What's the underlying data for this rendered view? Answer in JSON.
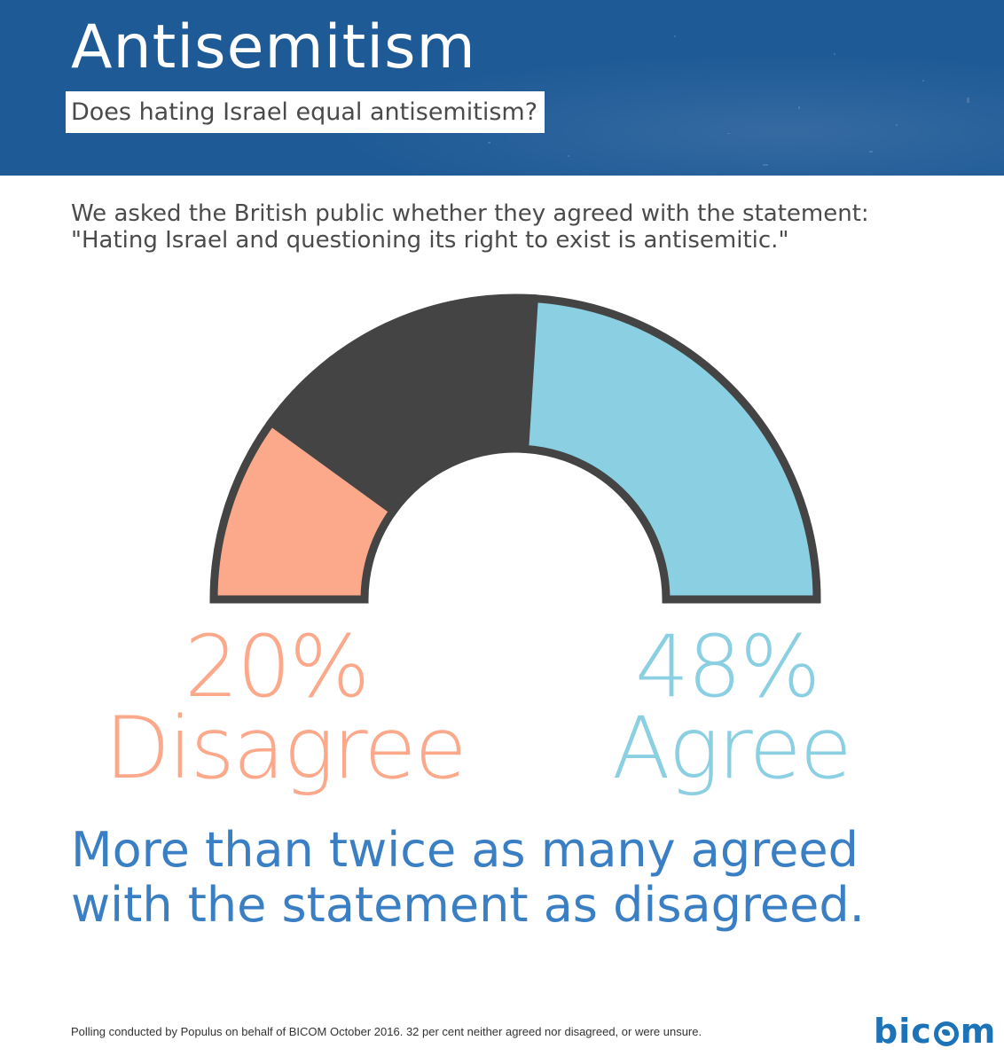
{
  "header": {
    "title": "Antisemitism",
    "subtitle": "Does hating Israel equal antisemitism?",
    "background_color": "#1e5a96"
  },
  "intro_text": "We asked the British public whether they agreed with the statement: \"Hating Israel and questioning its right to exist is antisemitic.\"",
  "chart_data": {
    "type": "pie",
    "shape": "semicircle-gauge",
    "categories": [
      "Disagree",
      "Neither / unsure",
      "Agree"
    ],
    "values": [
      20,
      32,
      48
    ],
    "unit": "%",
    "colors": [
      "#fba98a",
      "#444444",
      "#8bcfe2"
    ],
    "outline_color": "#444444",
    "labels": [
      {
        "category": "Disagree",
        "value_text": "20%",
        "label_text": "Disagree",
        "color": "#fba98a"
      },
      {
        "category": "Agree",
        "value_text": "48%",
        "label_text": "Agree",
        "color": "#8bcfe2"
      }
    ]
  },
  "conclusion": "More than twice as many agreed with the statement as disagreed.",
  "footnote": "Polling conducted by Populus on behalf of BICOM October 2016. 32 per cent neither agreed nor disagreed, or were unsure.",
  "logo": {
    "text_before": "bic",
    "text_after": "m",
    "color": "#1d73b8"
  }
}
